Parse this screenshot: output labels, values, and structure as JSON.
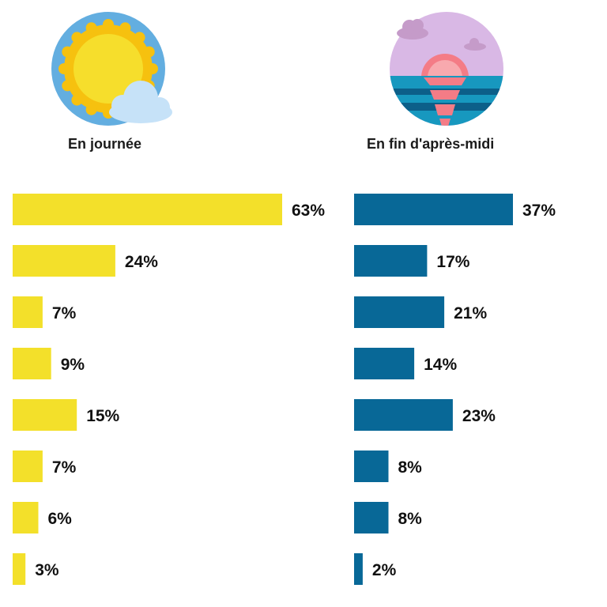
{
  "colors": {
    "day_bar": "#f3e02a",
    "evening_bar": "#086897"
  },
  "chart_data": [
    {
      "type": "bar",
      "orientation": "horizontal",
      "title": "En journée",
      "icon": "sun-cloud-icon",
      "values": [
        63,
        24,
        7,
        9,
        15,
        7,
        6,
        3
      ],
      "labels": [
        "63%",
        "24%",
        "7%",
        "9%",
        "15%",
        "7%",
        "6%",
        "3%"
      ],
      "color": "#f3e02a",
      "xlim": [
        0,
        63
      ]
    },
    {
      "type": "bar",
      "orientation": "horizontal",
      "title": "En fin d'après-midi",
      "icon": "sunset-sea-icon",
      "values": [
        37,
        17,
        21,
        14,
        23,
        8,
        8,
        2
      ],
      "labels": [
        "37%",
        "17%",
        "21%",
        "14%",
        "23%",
        "8%",
        "8%",
        "2%"
      ],
      "color": "#086897",
      "xlim": [
        0,
        37
      ]
    }
  ]
}
